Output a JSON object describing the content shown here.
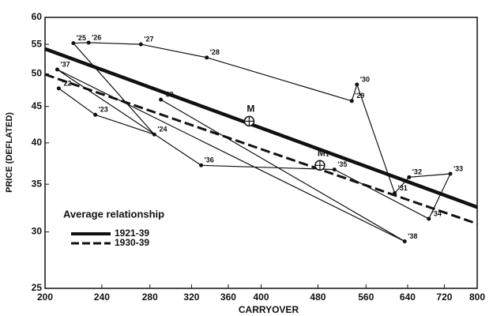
{
  "chart_data": {
    "type": "line",
    "x_label": "CARRYOVER",
    "y_label": "PRICE (DEFLATED)",
    "xscale": "log",
    "yscale": "log",
    "xlim": [
      200,
      800
    ],
    "ylim": [
      25,
      60
    ],
    "xticks": [
      200,
      240,
      280,
      320,
      360,
      400,
      480,
      560,
      640,
      720,
      800
    ],
    "yticks": [
      25,
      30,
      35,
      40,
      45,
      50,
      55,
      60
    ],
    "color": "#111111",
    "points": {
      "labels": [
        "'22",
        "'23",
        "'24",
        "'25",
        "'26",
        "'27",
        "'28",
        "'29",
        "'30",
        "'31",
        "'32",
        "'33",
        "'34",
        "'35",
        "'36",
        "'37",
        "'38",
        "'39"
      ],
      "x": [
        209,
        235,
        284,
        219,
        230,
        272,
        336,
        535,
        544,
        614,
        643,
        734,
        685,
        506,
        330,
        208,
        634,
        290
      ],
      "y": [
        47.7,
        43.8,
        41.1,
        55.2,
        55.3,
        55.0,
        52.7,
        45.8,
        48.3,
        34.0,
        35.8,
        36.2,
        31.3,
        36.7,
        37.2,
        50.7,
        29.1,
        46.0
      ]
    },
    "legend_title": "Average relationship",
    "lines": [
      {
        "name": "1921-39",
        "x": [
          200,
          800
        ],
        "y": [
          54.2,
          32.5
        ],
        "dashed": false
      },
      {
        "name": "1930-39",
        "x": [
          200,
          800
        ],
        "y": [
          49.9,
          30.8
        ],
        "dashed": true
      }
    ],
    "markers": [
      {
        "label": "M",
        "x": 385,
        "y": 42.9
      },
      {
        "label": "M₁",
        "x": 483,
        "y": 37.2
      }
    ]
  }
}
